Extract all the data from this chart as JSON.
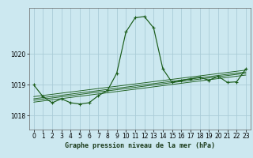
{
  "title": "Graphe pression niveau de la mer (hPa)",
  "background_color": "#cce8f0",
  "grid_color": "#aaccd8",
  "line_color": "#1a5c1a",
  "x_ticks": [
    0,
    1,
    2,
    3,
    4,
    5,
    6,
    7,
    8,
    9,
    10,
    11,
    12,
    13,
    14,
    15,
    16,
    17,
    18,
    19,
    20,
    21,
    22,
    23
  ],
  "y_ticks": [
    1018,
    1019,
    1020
  ],
  "ylim": [
    1017.55,
    1021.5
  ],
  "xlim": [
    -0.5,
    23.5
  ],
  "main_series": {
    "x": [
      0,
      1,
      2,
      3,
      4,
      5,
      6,
      7,
      8,
      9,
      10,
      11,
      12,
      13,
      14,
      15,
      16,
      17,
      18,
      19,
      20,
      21,
      22,
      23
    ],
    "y": [
      1019.0,
      1018.62,
      1018.42,
      1018.55,
      1018.42,
      1018.38,
      1018.42,
      1018.65,
      1018.82,
      1019.38,
      1020.72,
      1021.18,
      1021.22,
      1020.85,
      1019.52,
      1019.08,
      1019.15,
      1019.2,
      1019.25,
      1019.15,
      1019.28,
      1019.08,
      1019.1,
      1019.52
    ]
  },
  "trend_lines": [
    {
      "x": [
        0,
        23
      ],
      "y": [
        1018.62,
        1019.48
      ]
    },
    {
      "x": [
        0,
        23
      ],
      "y": [
        1018.55,
        1019.42
      ]
    },
    {
      "x": [
        0,
        23
      ],
      "y": [
        1018.5,
        1019.38
      ]
    },
    {
      "x": [
        0,
        23
      ],
      "y": [
        1018.44,
        1019.32
      ]
    }
  ],
  "xlabel_fontsize": 6.0,
  "tick_fontsize": 5.5
}
